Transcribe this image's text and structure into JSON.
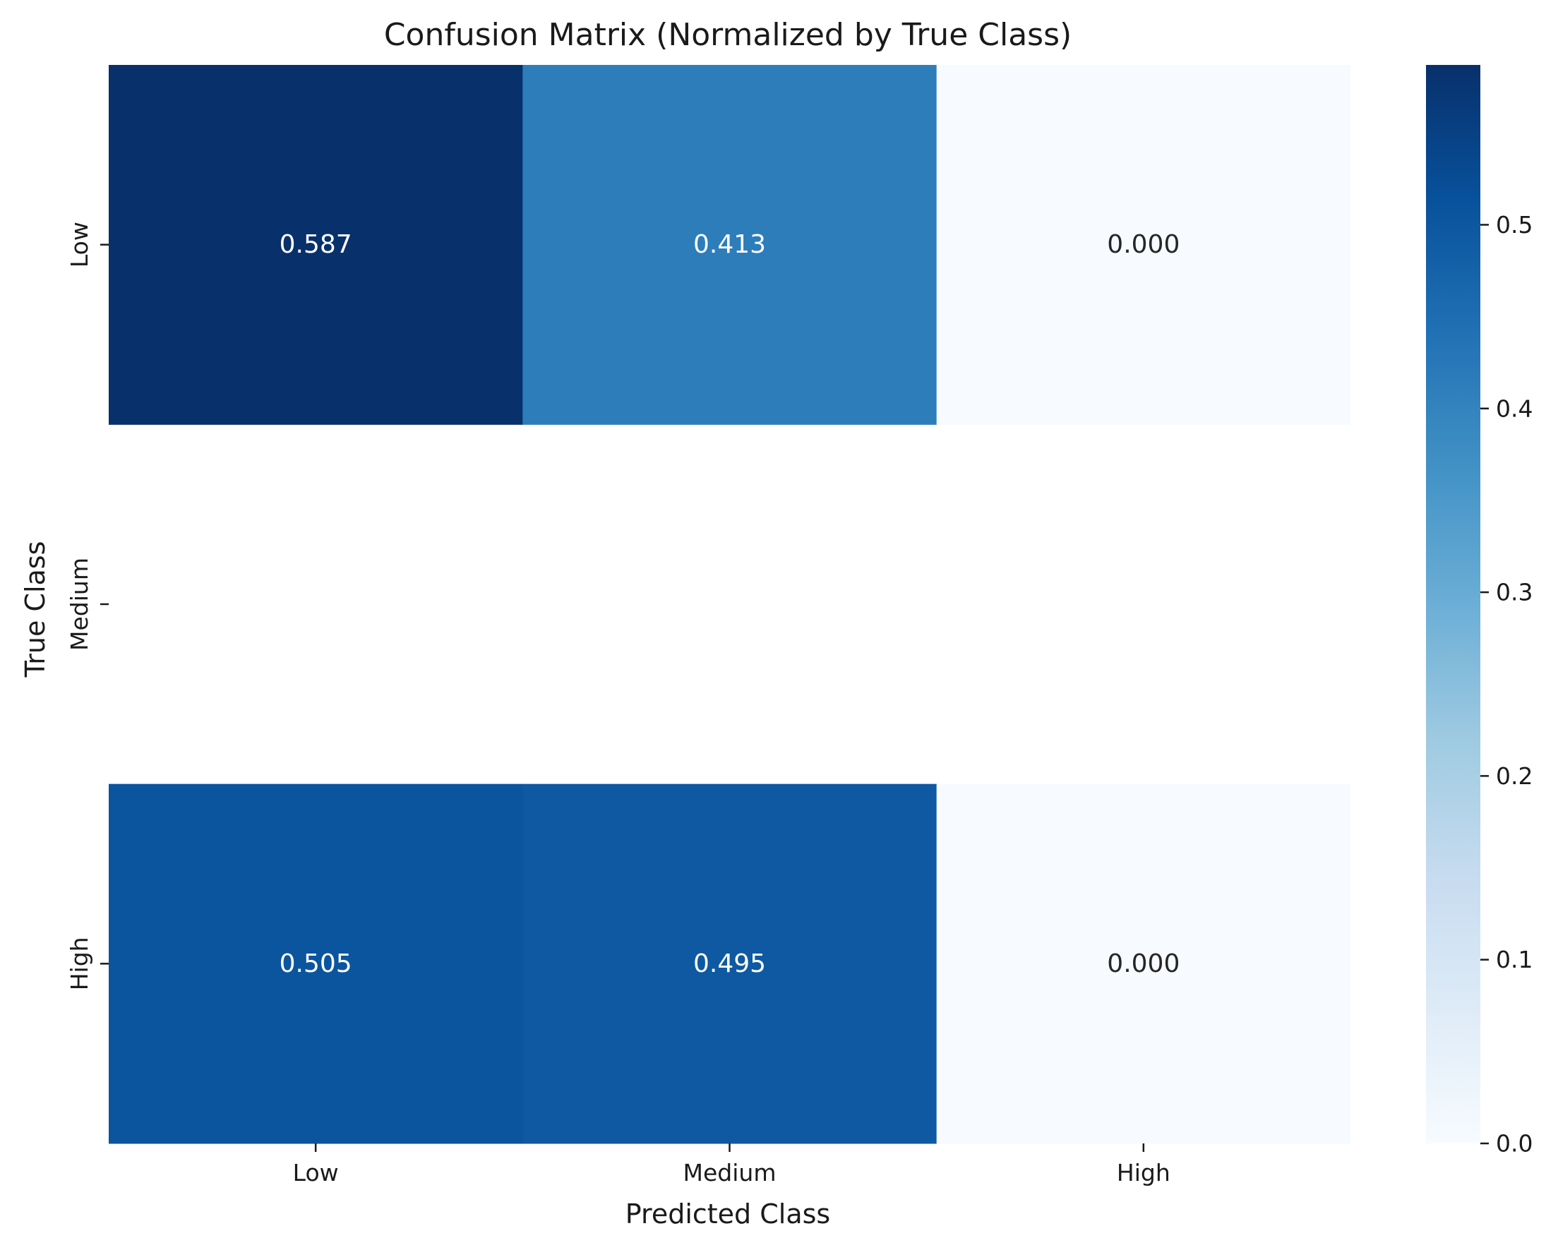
{
  "chart_data": {
    "type": "heatmap",
    "title": "Confusion Matrix (Normalized by True Class)",
    "xlabel": "Predicted Class",
    "ylabel": "True Class",
    "x_categories": [
      "Low",
      "Medium",
      "High"
    ],
    "y_categories": [
      "Low",
      "Medium",
      "High"
    ],
    "values": [
      [
        0.587,
        0.413,
        0.0
      ],
      [
        null,
        null,
        null
      ],
      [
        0.505,
        0.495,
        0.0
      ]
    ],
    "cell_labels": [
      [
        "0.587",
        "0.413",
        "0.000"
      ],
      [
        null,
        null,
        null
      ],
      [
        "0.505",
        "0.495",
        "0.000"
      ]
    ],
    "colormap": "Blues",
    "colorbar": {
      "vmin": 0.0,
      "vmax": 0.587,
      "ticks": [
        0.0,
        0.1,
        0.2,
        0.3,
        0.4,
        0.5
      ],
      "tick_labels": [
        "0.0",
        "0.1",
        "0.2",
        "0.3",
        "0.4",
        "0.5"
      ]
    },
    "grid": false,
    "legend": "colorbar-right"
  }
}
